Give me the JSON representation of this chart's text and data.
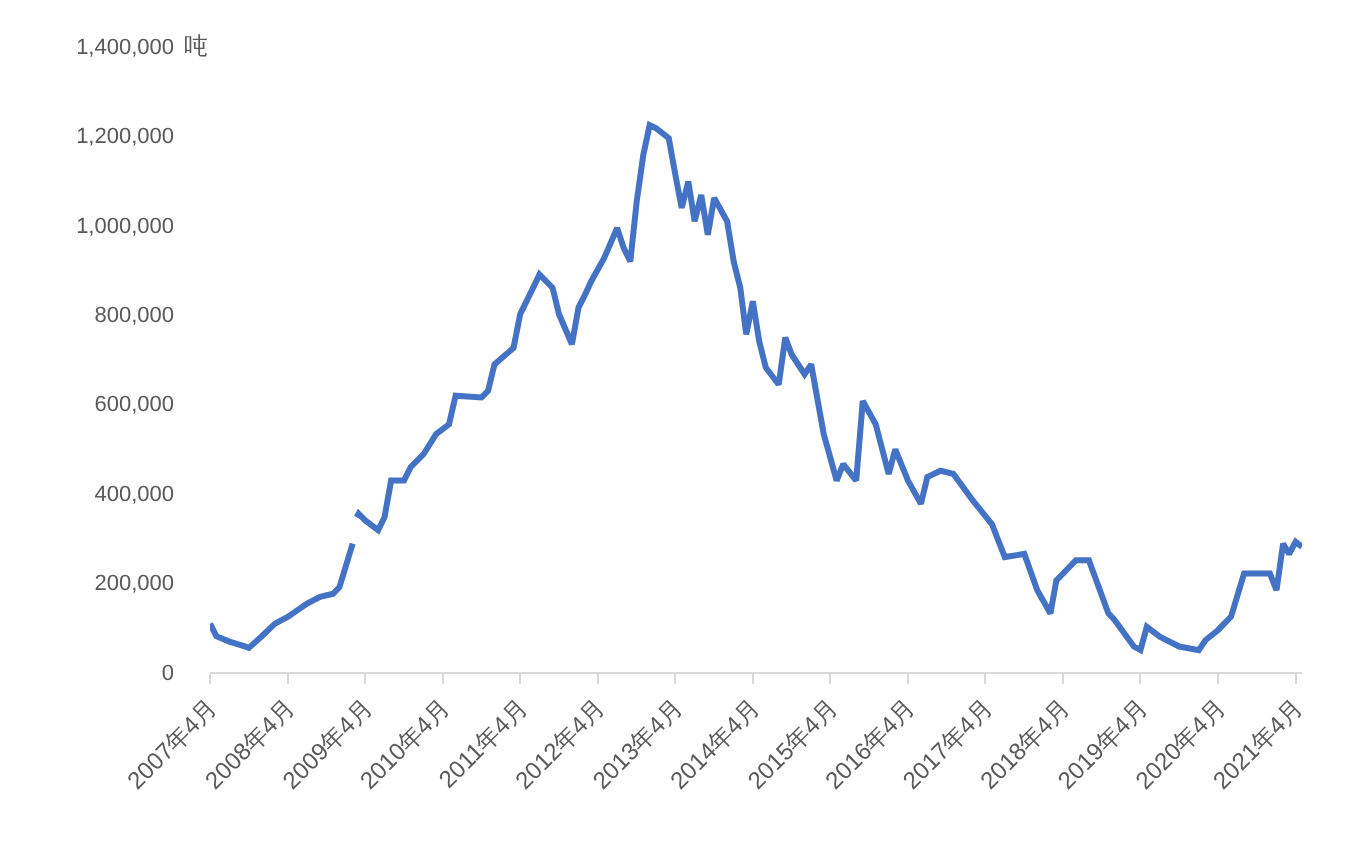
{
  "chart_data": {
    "type": "line",
    "ylabel": "吨",
    "x": [
      "2007-04",
      "2007-05",
      "2007-07",
      "2007-09",
      "2007-10",
      "2007-12",
      "2008-02",
      "2008-04",
      "2008-07",
      "2008-09",
      "2008-11",
      "2008-12",
      "2009-02-01",
      "2009-02-10",
      "2009-02-20",
      "2009-03",
      "2009-04",
      "2009-06",
      "2009-07",
      "2009-08",
      "2009-10",
      "2009-11",
      "2010-01",
      "2010-03",
      "2010-05",
      "2010-06",
      "2010-10",
      "2010-11",
      "2010-12",
      "2011-03",
      "2011-04",
      "2011-06",
      "2011-07",
      "2011-09",
      "2011-10",
      "2011-12",
      "2012-01",
      "2012-02",
      "2012-03",
      "2012-05",
      "2012-07",
      "2012-08",
      "2012-09",
      "2012-10",
      "2012-11",
      "2012-12",
      "2013-01",
      "2013-03",
      "2013-04",
      "2013-05",
      "2013-06",
      "2013-07",
      "2013-08",
      "2013-09",
      "2013-10",
      "2013-12",
      "2014-01",
      "2014-02",
      "2014-03",
      "2014-04",
      "2014-05",
      "2014-06",
      "2014-08",
      "2014-09",
      "2014-10",
      "2014-12",
      "2015-01",
      "2015-03",
      "2015-05",
      "2015-06",
      "2015-08",
      "2015-09",
      "2015-11",
      "2016-01",
      "2016-02",
      "2016-04",
      "2016-06",
      "2016-07",
      "2016-09",
      "2016-11",
      "2017-02",
      "2017-05",
      "2017-07",
      "2017-10",
      "2017-12",
      "2018-02",
      "2018-03",
      "2018-06",
      "2018-08",
      "2018-11",
      "2018-12",
      "2019-03",
      "2019-04",
      "2019-05",
      "2019-07",
      "2019-10",
      "2020-01",
      "2020-02",
      "2020-04",
      "2020-06",
      "2020-08",
      "2020-12",
      "2021-01",
      "2021-02",
      "2021-03",
      "2021-04",
      "2021-05"
    ],
    "series": [
      {
        "color": "#4472c4",
        "values": [
          108000,
          80000,
          68000,
          59000,
          54000,
          80000,
          108000,
          123000,
          153000,
          168000,
          175000,
          190000,
          287000,
          null,
          346000,
          354000,
          339000,
          317000,
          346000,
          428000,
          428000,
          458000,
          487000,
          532000,
          554000,
          618000,
          614000,
          629000,
          688000,
          725000,
          800000,
          859000,
          889000,
          859000,
          800000,
          733000,
          815000,
          844000,
          874000,
          926000,
          993000,
          948000,
          918000,
          1052000,
          1156000,
          1223000,
          1216000,
          1194000,
          1112000,
          1038000,
          1097000,
          1008000,
          1067000,
          978000,
          1060000,
          1008000,
          918000,
          859000,
          755000,
          829000,
          740000,
          681000,
          643000,
          748000,
          710000,
          666000,
          688000,
          532000,
          428000,
          465000,
          428000,
          606000,
          554000,
          443000,
          498000,
          428000,
          376000,
          436000,
          450000,
          443000,
          383000,
          331000,
          257000,
          264000,
          183000,
          131000,
          205000,
          250000,
          250000,
          131000,
          116000,
          57000,
          49000,
          101000,
          79000,
          57000,
          49000,
          71000,
          94000,
          124000,
          220000,
          220000,
          183000,
          287000,
          264000,
          291000,
          280000
        ]
      }
    ],
    "xlim": [
      "2007-04",
      "2021-05"
    ],
    "xticks": [
      {
        "value": "2007-04",
        "label": "2007年4月"
      },
      {
        "value": "2008-04",
        "label": "2008年4月"
      },
      {
        "value": "2009-04",
        "label": "2009年4月"
      },
      {
        "value": "2010-04",
        "label": "2010年4月"
      },
      {
        "value": "2011-04",
        "label": "2011年4月"
      },
      {
        "value": "2012-04",
        "label": "2012年4月"
      },
      {
        "value": "2013-04",
        "label": "2013年4月"
      },
      {
        "value": "2014-04",
        "label": "2014年4月"
      },
      {
        "value": "2015-04",
        "label": "2015年4月"
      },
      {
        "value": "2016-04",
        "label": "2016年4月"
      },
      {
        "value": "2017-04",
        "label": "2017年4月"
      },
      {
        "value": "2018-04",
        "label": "2018年4月"
      },
      {
        "value": "2019-04",
        "label": "2019年4月"
      },
      {
        "value": "2020-04",
        "label": "2020年4月"
      },
      {
        "value": "2021-04",
        "label": "2021年4月"
      }
    ],
    "ylim": [
      0,
      1400000
    ],
    "yticks": [
      0,
      {
        "value": 200000,
        "label": "200,000"
      },
      {
        "value": 400000,
        "label": "400,000"
      },
      {
        "value": 600000,
        "label": "600,000"
      },
      {
        "value": 800000,
        "label": "800,000"
      },
      {
        "value": 1000000,
        "label": "1,000,000"
      },
      {
        "value": 1200000,
        "label": "1,200,000"
      },
      {
        "value": 1400000,
        "label": "1,400,000"
      }
    ],
    "grid": false,
    "marker": "none",
    "line_style": "solid"
  }
}
